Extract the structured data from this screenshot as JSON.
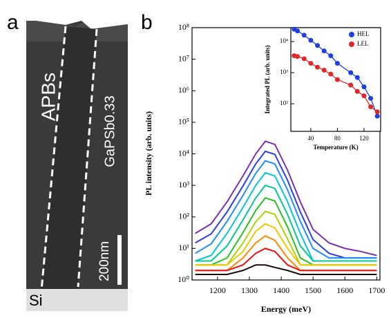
{
  "panel_labels": [
    "a",
    "b"
  ],
  "image": {
    "labels": [
      "APBs",
      "GaPSb0.33",
      "200nm",
      "Si"
    ]
  },
  "chart_data": [
    {
      "type": "line",
      "xlabel": "Energy (meV)",
      "ylabel": "PL intensity (arb. units)",
      "log_y": true,
      "xlim": [
        1120,
        1710
      ],
      "ylim": [
        1,
        100000000
      ],
      "xticks": [
        1200,
        1300,
        1400,
        1500,
        1600,
        1700
      ],
      "yticks": [
        {
          "value": 1,
          "label": "10⁰"
        },
        {
          "value": 10,
          "label": "10¹"
        },
        {
          "value": 100,
          "label": "10²"
        },
        {
          "value": 1000,
          "label": "10³"
        },
        {
          "value": 10000,
          "label": "10⁴"
        },
        {
          "value": 100000,
          "label": "10⁵"
        },
        {
          "value": 1000000,
          "label": "10⁶"
        },
        {
          "value": 10000000,
          "label": "10⁷"
        },
        {
          "value": 100000000,
          "label": "10⁸"
        }
      ],
      "x": [
        1130,
        1180,
        1230,
        1280,
        1320,
        1350,
        1380,
        1420,
        1460,
        1500,
        1550,
        1600,
        1650,
        1700
      ],
      "series": [
        {
          "color": "#7a2fb0",
          "values": [
            30,
            60,
            300,
            2000,
            10000,
            25000,
            20000,
            3000,
            300,
            40,
            15,
            10,
            8,
            6
          ]
        },
        {
          "color": "#2c3cf0",
          "values": [
            15,
            29,
            144,
            960,
            4800,
            12000,
            9600,
            1440,
            144,
            19,
            7,
            5,
            5,
            5
          ]
        },
        {
          "color": "#1e8cff",
          "values": [
            7,
            14,
            72,
            480,
            2400,
            6000,
            4800,
            720,
            72,
            10,
            5,
            5,
            5,
            5
          ]
        },
        {
          "color": "#00c4e0",
          "values": [
            4,
            6,
            30,
            200,
            1000,
            2500,
            2000,
            300,
            30,
            4,
            4,
            4,
            4,
            4
          ]
        },
        {
          "color": "#00c890",
          "values": [
            4,
            4,
            12,
            80,
            400,
            1000,
            800,
            120,
            12,
            4,
            4,
            4,
            4,
            4
          ]
        },
        {
          "color": "#28c020",
          "values": [
            3,
            3,
            5,
            32,
            160,
            400,
            320,
            48,
            5,
            3,
            3,
            3,
            3,
            3
          ]
        },
        {
          "color": "#a8d400",
          "values": [
            3,
            3,
            3,
            15,
            70,
            150,
            120,
            20,
            3,
            3,
            3,
            3,
            3,
            3
          ]
        },
        {
          "color": "#f0c800",
          "values": [
            3,
            3,
            3,
            8,
            35,
            60,
            45,
            10,
            3,
            3,
            3,
            3,
            3,
            3
          ]
        },
        {
          "color": "#ff8a00",
          "values": [
            2,
            2,
            2,
            5,
            15,
            25,
            18,
            5,
            2,
            2,
            2,
            2,
            2,
            2
          ]
        },
        {
          "color": "#e81010",
          "values": [
            2,
            2,
            2,
            3,
            7,
            10,
            8,
            3,
            2,
            2,
            2,
            2,
            2,
            2
          ]
        },
        {
          "color": "#1a0a0a",
          "values": [
            1.5,
            1.5,
            1.5,
            2,
            3,
            3,
            2.5,
            2,
            1.5,
            1.5,
            1.5,
            1.5,
            1.5,
            1.5
          ]
        }
      ]
    },
    {
      "type": "scatter",
      "xlabel": "Temperature (K)",
      "ylabel": "Integrated PL (arb. units)",
      "log_y": true,
      "xlim": [
        10,
        145
      ],
      "ylim": [
        13,
        28000
      ],
      "xticks": [
        40,
        80,
        120
      ],
      "yticks": [
        {
          "value": 100,
          "label": "10²"
        },
        {
          "value": 1000,
          "label": "10³"
        },
        {
          "value": 10000,
          "label": "10⁴"
        }
      ],
      "legend": "top-right",
      "x": [
        15,
        20,
        30,
        40,
        50,
        60,
        70,
        80,
        100,
        110,
        120,
        130,
        140
      ],
      "series": [
        {
          "name": "HEL",
          "color": "#1f3fe0",
          "values": [
            25000,
            22000,
            16000,
            11000,
            7500,
            5000,
            3500,
            2000,
            1000,
            700,
            350,
            150,
            40
          ]
        },
        {
          "name": "LEL",
          "color": "#e02828",
          "values": [
            3500,
            3300,
            2800,
            2000,
            1500,
            1200,
            900,
            600,
            400,
            250,
            180,
            80,
            55
          ]
        }
      ]
    }
  ]
}
